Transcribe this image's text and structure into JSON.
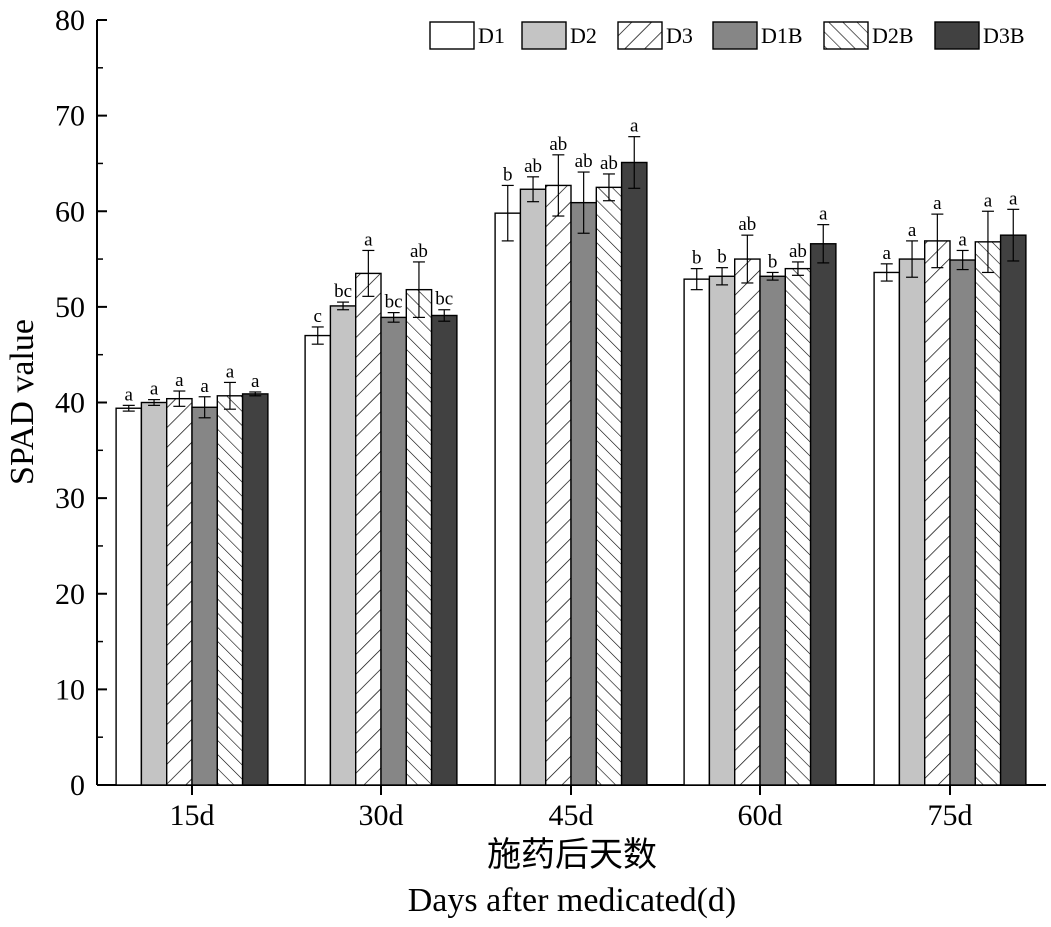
{
  "chart_data": {
    "type": "bar",
    "title": "",
    "xlabel_cn": "施药后天数",
    "xlabel": "Days after medicated(d)",
    "ylabel": "SPAD value",
    "ylim": [
      0,
      80
    ],
    "yticks": [
      0,
      10,
      20,
      30,
      40,
      50,
      60,
      70,
      80
    ],
    "grid": false,
    "legend_position": "top-right",
    "categories": [
      "15d",
      "30d",
      "45d",
      "60d",
      "75d"
    ],
    "series": [
      {
        "name": "D1",
        "fill": "white",
        "color": "#ffffff",
        "values": [
          39.4,
          47.0,
          59.8,
          52.9,
          53.6
        ],
        "errors": [
          0.3,
          0.9,
          2.9,
          1.1,
          0.9
        ],
        "letters": [
          "a",
          "c",
          "b",
          "b",
          "a"
        ]
      },
      {
        "name": "D2",
        "fill": "solid",
        "color": "#c4c4c4",
        "values": [
          40.0,
          50.1,
          62.3,
          53.2,
          55.0
        ],
        "errors": [
          0.3,
          0.4,
          1.3,
          0.9,
          1.9
        ],
        "letters": [
          "a",
          "bc",
          "ab",
          "b",
          "a"
        ]
      },
      {
        "name": "D3",
        "fill": "hatch-forward",
        "color": "#ffffff",
        "values": [
          40.4,
          53.5,
          62.7,
          55.0,
          56.9
        ],
        "errors": [
          0.8,
          2.4,
          3.2,
          2.5,
          2.8
        ],
        "letters": [
          "a",
          "a",
          "ab",
          "ab",
          "a"
        ]
      },
      {
        "name": "D1B",
        "fill": "solid",
        "color": "#868686",
        "values": [
          39.5,
          48.9,
          60.9,
          53.2,
          54.9
        ],
        "errors": [
          1.1,
          0.5,
          3.2,
          0.4,
          1.0
        ],
        "letters": [
          "a",
          "bc",
          "ab",
          "b",
          "a"
        ]
      },
      {
        "name": "D2B",
        "fill": "hatch-back",
        "color": "#ffffff",
        "values": [
          40.7,
          51.8,
          62.5,
          54.0,
          56.8
        ],
        "errors": [
          1.4,
          2.9,
          1.4,
          0.7,
          3.2
        ],
        "letters": [
          "a",
          "ab",
          "ab",
          "ab",
          "a"
        ]
      },
      {
        "name": "D3B",
        "fill": "solid",
        "color": "#414141",
        "values": [
          40.9,
          49.1,
          65.1,
          56.6,
          57.5
        ],
        "errors": [
          0.2,
          0.6,
          2.7,
          2.0,
          2.7
        ],
        "letters": [
          "a",
          "bc",
          "a",
          "a",
          "a"
        ]
      }
    ]
  }
}
